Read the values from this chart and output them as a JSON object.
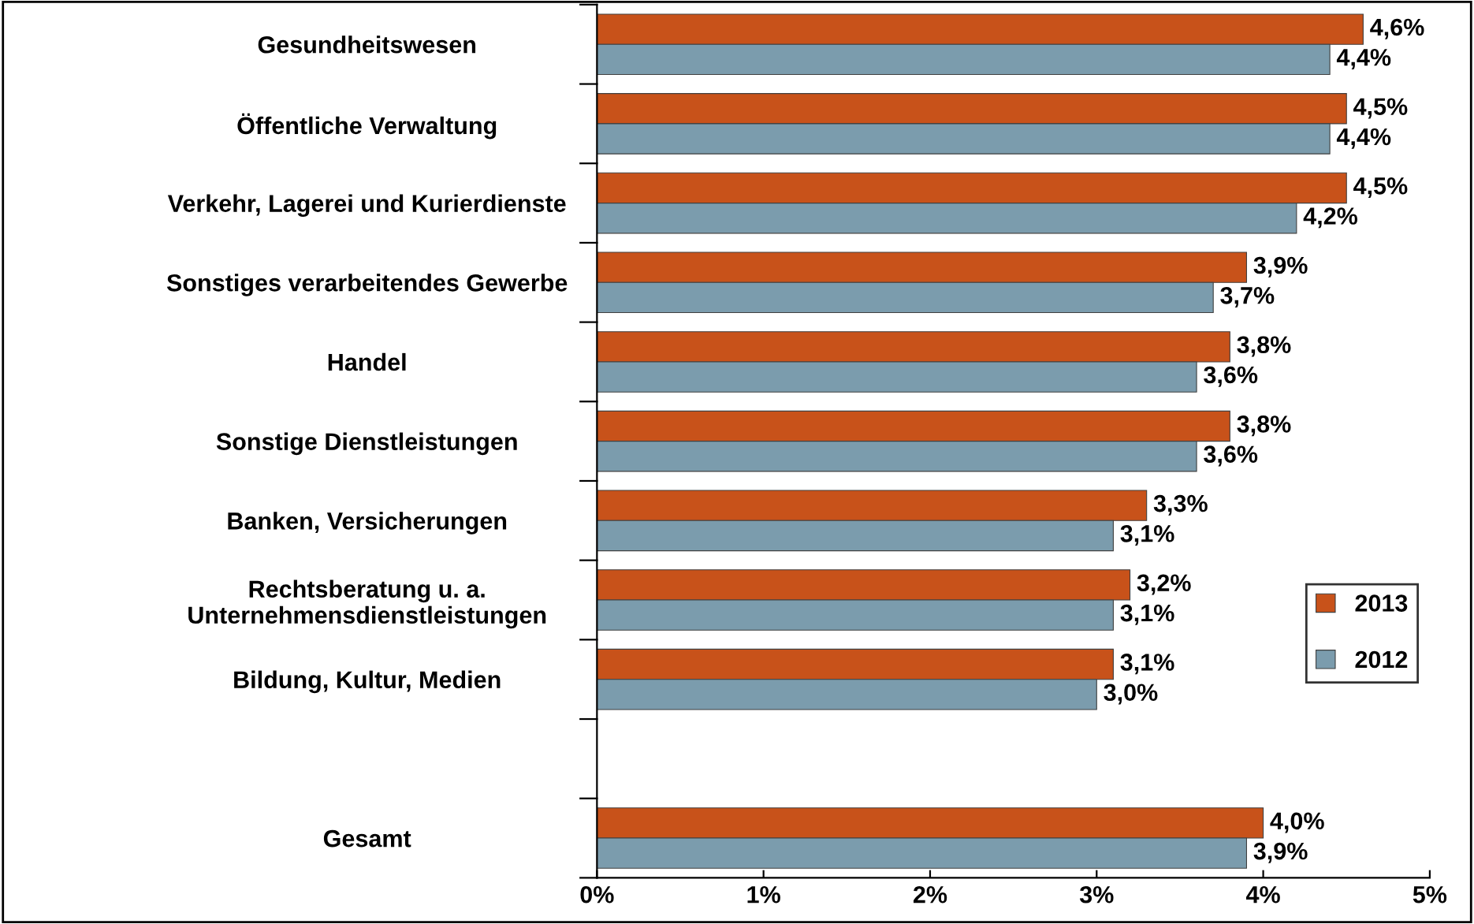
{
  "chart_data": {
    "type": "bar",
    "orientation": "horizontal",
    "categories": [
      "Gesundheitswesen",
      "Öffentliche Verwaltung",
      "Verkehr, Lagerei und Kurierdienste",
      "Sonstiges verarbeitendes Gewerbe",
      "Handel",
      "Sonstige Dienstleistungen",
      "Banken, Versicherungen",
      "Rechtsberatung u. a.\nUnternehmensdienstleistungen",
      "Bildung, Kultur, Medien",
      null,
      "Gesamt"
    ],
    "series": [
      {
        "name": "2013",
        "color": "#c8521a",
        "values": [
          4.6,
          4.5,
          4.5,
          3.9,
          3.8,
          3.8,
          3.3,
          3.2,
          3.1,
          null,
          4.0
        ],
        "value_labels": [
          "4,6%",
          "4,5%",
          "4,5%",
          "3,9%",
          "3,8%",
          "3,8%",
          "3,3%",
          "3,2%",
          "3,1%",
          null,
          "4,0%"
        ]
      },
      {
        "name": "2012",
        "color": "#7b9cad",
        "values": [
          4.4,
          4.4,
          4.2,
          3.7,
          3.6,
          3.6,
          3.1,
          3.1,
          3.0,
          null,
          3.9
        ],
        "value_labels": [
          "4,4%",
          "4,4%",
          "4,2%",
          "3,7%",
          "3,6%",
          "3,6%",
          "3,1%",
          "3,1%",
          "3,0%",
          null,
          "3,9%"
        ]
      }
    ],
    "xlim": [
      0,
      5
    ],
    "xticks": [
      {
        "value": 0,
        "label": "0%"
      },
      {
        "value": 1,
        "label": "1%"
      },
      {
        "value": 2,
        "label": "2%"
      },
      {
        "value": 3,
        "label": "3%"
      },
      {
        "value": 4,
        "label": "4%"
      },
      {
        "value": 5,
        "label": "5%"
      }
    ],
    "grid": false,
    "legend": "right"
  }
}
